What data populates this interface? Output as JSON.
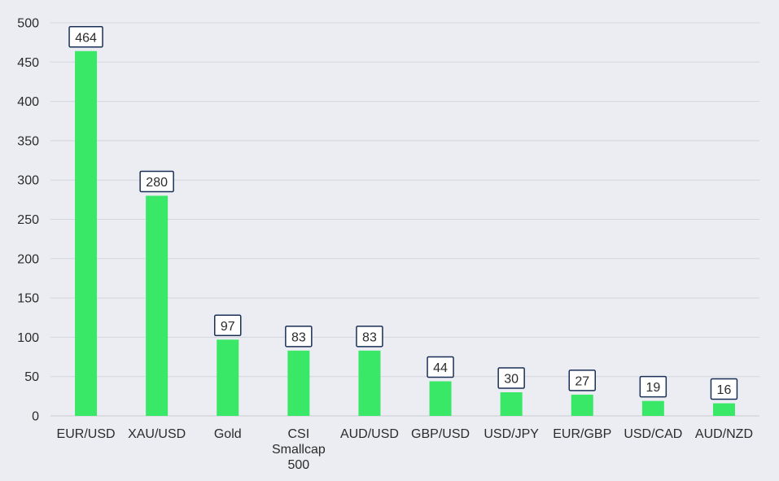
{
  "chart_data": {
    "type": "bar",
    "title": "",
    "xlabel": "",
    "ylabel": "",
    "categories": [
      [
        "EUR/USD"
      ],
      [
        "XAU/USD"
      ],
      [
        "Gold"
      ],
      [
        "CSI",
        "Smallcap",
        "500"
      ],
      [
        "AUD/USD"
      ],
      [
        "GBP/USD"
      ],
      [
        "USD/JPY"
      ],
      [
        "EUR/GBP"
      ],
      [
        "USD/CAD"
      ],
      [
        "AUD/NZD"
      ]
    ],
    "values": [
      464,
      280,
      97,
      83,
      83,
      44,
      30,
      27,
      19,
      16
    ],
    "ylim": [
      0,
      500
    ],
    "yticks": [
      0,
      50,
      100,
      150,
      200,
      250,
      300,
      350,
      400,
      450,
      500
    ],
    "grid": true,
    "legend": "none",
    "bar_color": "#39e866",
    "label_border_color": "#1a2f55"
  }
}
